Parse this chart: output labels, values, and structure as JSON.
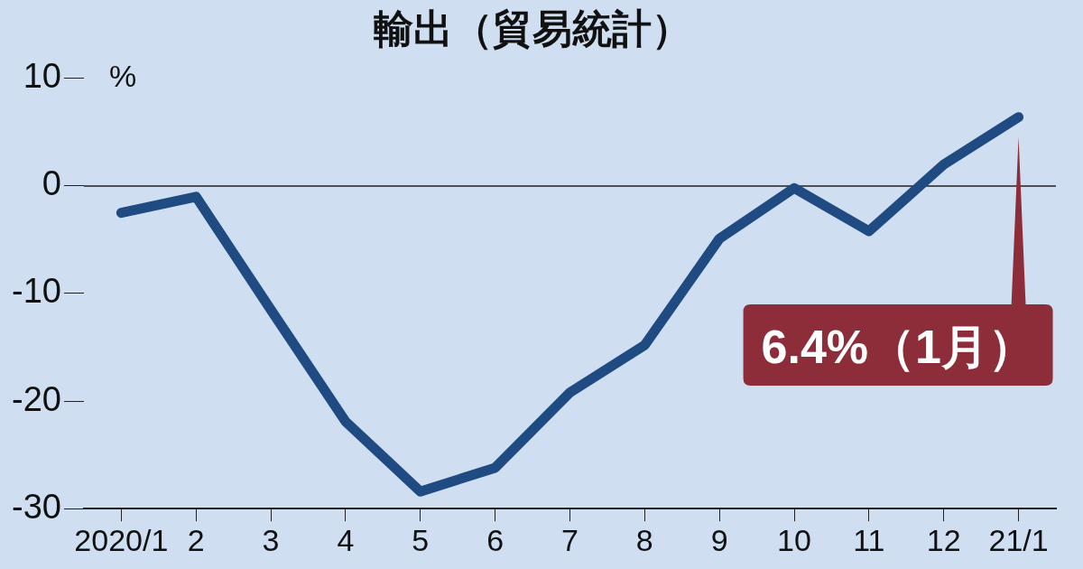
{
  "chart_data": {
    "type": "line",
    "title": "輸出（貿易統計）",
    "ylabel": "%",
    "categories": [
      "2020/1",
      "2",
      "3",
      "4",
      "5",
      "6",
      "7",
      "8",
      "9",
      "10",
      "11",
      "12",
      "21/1"
    ],
    "series": [
      {
        "color": "#1f4b82",
        "values": [
          -2.5,
          -1.0,
          -11.5,
          -21.9,
          -28.4,
          -26.2,
          -19.2,
          -14.8,
          -4.9,
          -0.2,
          -4.2,
          2.0,
          6.4
        ]
      }
    ],
    "ylim": [
      -30,
      10
    ],
    "yticks": [
      10,
      0,
      -10,
      -20,
      -30
    ],
    "grid": false,
    "legend": false,
    "marker": "none",
    "line_style": "solid",
    "ref_lines": [
      {
        "axis": "y",
        "value": 0,
        "color": "#222222"
      }
    ],
    "annotations": [
      "6.4%（1月）"
    ]
  }
}
